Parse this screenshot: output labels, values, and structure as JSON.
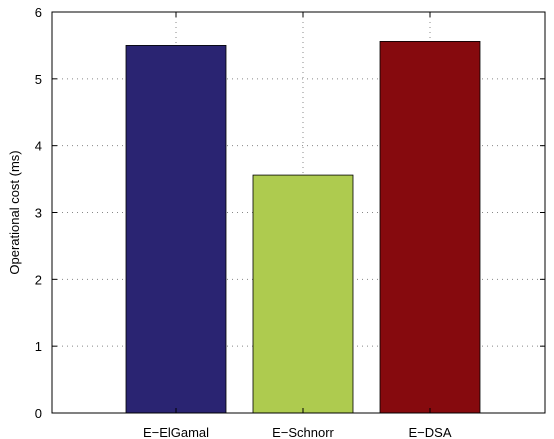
{
  "chart_data": {
    "type": "bar",
    "categories": [
      "E−ElGamal",
      "E−Schnorr",
      "E−DSA"
    ],
    "values": [
      5.5,
      3.56,
      5.56
    ],
    "colors": [
      "#2a2472",
      "#aecb4f",
      "#860a0e"
    ],
    "title": "",
    "xlabel": "",
    "ylabel": "Operational cost (ms)",
    "ylim": [
      0,
      6
    ],
    "yticks": [
      0,
      1,
      2,
      3,
      4,
      5,
      6
    ],
    "grid": true
  }
}
